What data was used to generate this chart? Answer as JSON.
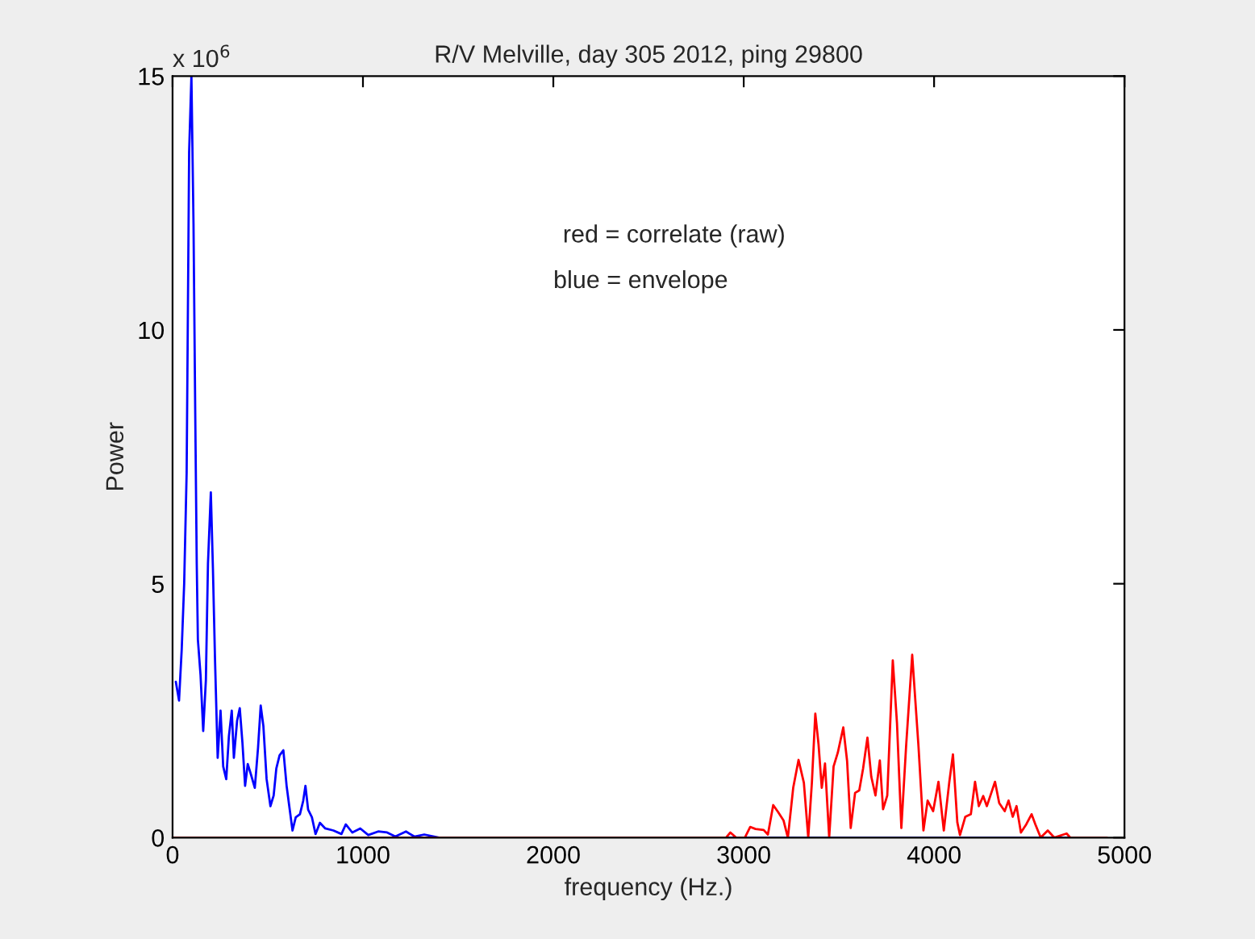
{
  "chart_data": {
    "type": "line",
    "title": "R/V Melville, day 305 2012, ping 29800",
    "xlabel": "frequency (Hz.)",
    "ylabel": "Power",
    "annotations": [
      "x 10$^{6}$",
      "red = correlate (raw)",
      "blue = envelope"
    ],
    "xlim": [
      0,
      5000
    ],
    "xticks": [
      0,
      1000,
      2000,
      3000,
      4000,
      5000
    ],
    "ylim": [
      0,
      15
    ],
    "yticks": [
      0,
      5,
      10,
      15
    ],
    "grid": false,
    "legend": false,
    "marker": "none",
    "line_style": "solid",
    "series": [
      {
        "color": "#0000ff",
        "x": [
          17,
          34,
          48,
          61,
          74,
          87,
          99,
          110,
          119,
          127,
          133,
          147,
          161,
          175,
          186,
          201,
          212,
          223,
          237,
          252,
          266,
          282,
          296,
          311,
          322,
          339,
          353,
          367,
          381,
          395,
          412,
          432,
          449,
          463,
          477,
          494,
          514,
          531,
          545,
          562,
          582,
          599,
          613,
          630,
          647,
          669,
          686,
          698,
          712,
          732,
          751,
          774,
          802,
          845,
          887,
          910,
          944,
          986,
          1028,
          1080,
          1127,
          1170,
          1226,
          1270,
          1322,
          1400,
          4700
        ],
        "values": [
          3.07,
          2.7,
          3.7,
          5.0,
          7.2,
          13.5,
          15,
          12.1,
          8.4,
          5.4,
          3.9,
          3.2,
          2.1,
          3.1,
          5.4,
          6.8,
          5.3,
          3.5,
          1.57,
          2.5,
          1.4,
          1.15,
          2.0,
          2.5,
          1.57,
          2.3,
          2.55,
          1.87,
          1.02,
          1.45,
          1.24,
          0.98,
          1.77,
          2.6,
          2.2,
          1.15,
          0.62,
          0.83,
          1.36,
          1.62,
          1.72,
          1.02,
          0.62,
          0.14,
          0.4,
          0.46,
          0.72,
          1.02,
          0.55,
          0.4,
          0.07,
          0.29,
          0.18,
          0.14,
          0.07,
          0.26,
          0.1,
          0.18,
          0.05,
          0.12,
          0.1,
          0.02,
          0.12,
          0.02,
          0.06,
          0,
          0
        ]
      },
      {
        "color": "#ff0000",
        "x": [
          0,
          2907,
          2930,
          2960,
          3006,
          3034,
          3062,
          3105,
          3127,
          3155,
          3181,
          3209,
          3232,
          3260,
          3288,
          3316,
          3339,
          3358,
          3376,
          3393,
          3410,
          3427,
          3449,
          3472,
          3494,
          3523,
          3543,
          3562,
          3585,
          3607,
          3627,
          3650,
          3670,
          3692,
          3715,
          3732,
          3754,
          3783,
          3805,
          3828,
          3853,
          3885,
          3918,
          3944,
          3966,
          3995,
          4023,
          4051,
          4080,
          4099,
          4122,
          4136,
          4164,
          4193,
          4215,
          4235,
          4258,
          4277,
          4297,
          4320,
          4342,
          4371,
          4391,
          4413,
          4433,
          4456,
          4484,
          4512,
          4532,
          4560,
          4597,
          4631,
          4696,
          4715,
          4907
        ],
        "values": [
          0,
          0,
          0.1,
          0,
          0,
          0.21,
          0.17,
          0.15,
          0.06,
          0.64,
          0.5,
          0.34,
          0,
          0.98,
          1.53,
          1.08,
          0,
          1.08,
          2.44,
          1.84,
          0.98,
          1.46,
          0,
          1.4,
          1.67,
          2.17,
          1.51,
          0.19,
          0.88,
          0.93,
          1.36,
          1.97,
          1.2,
          0.83,
          1.52,
          0.56,
          0.83,
          3.49,
          2.26,
          0.19,
          1.8,
          3.6,
          1.8,
          0.14,
          0.73,
          0.52,
          1.1,
          0.14,
          1.1,
          1.64,
          0.3,
          0.05,
          0.41,
          0.46,
          1.1,
          0.62,
          0.82,
          0.62,
          0.84,
          1.1,
          0.68,
          0.52,
          0.73,
          0.41,
          0.62,
          0.1,
          0.26,
          0.46,
          0.26,
          0,
          0.14,
          0,
          0.08,
          0,
          0
        ]
      }
    ]
  }
}
